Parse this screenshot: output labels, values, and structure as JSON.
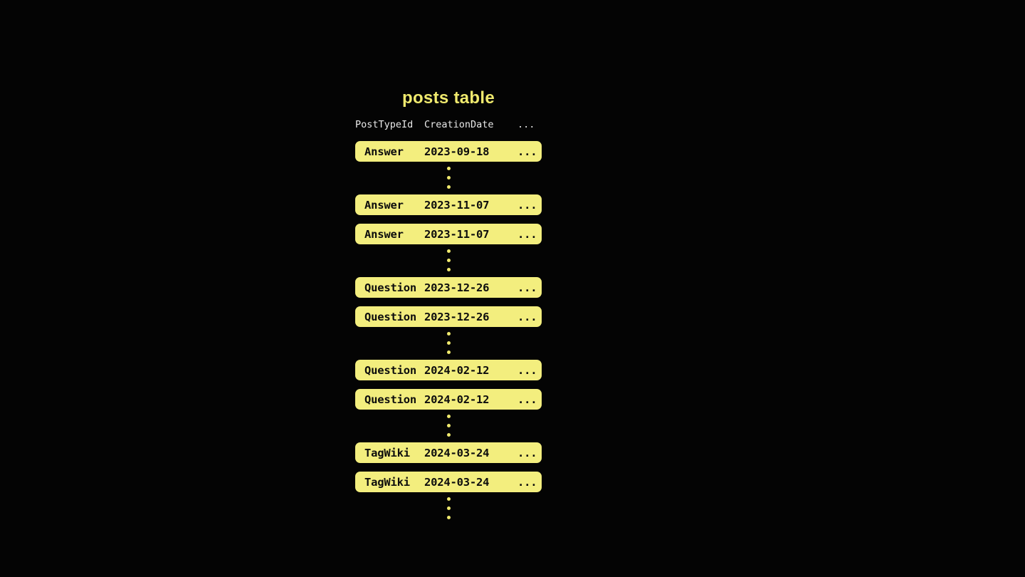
{
  "title": "posts table",
  "colors": {
    "bg": "#040404",
    "accent": "#f0ea6e",
    "row_bg": "#f3ee7e",
    "row_text": "#0d0d0d",
    "header_text": "#e9e9e9"
  },
  "table": {
    "columns": {
      "post_type_id": "PostTypeId",
      "creation_date": "CreationDate",
      "more": "..."
    },
    "row_more": "...",
    "rows": [
      {
        "type": "Answer",
        "date": "2023-09-18"
      },
      {
        "type": "Answer",
        "date": "2023-11-07"
      },
      {
        "type": "Answer",
        "date": "2023-11-07"
      },
      {
        "type": "Question",
        "date": "2023-12-26"
      },
      {
        "type": "Question",
        "date": "2023-12-26"
      },
      {
        "type": "Question",
        "date": "2024-02-12"
      },
      {
        "type": "Question",
        "date": "2024-02-12"
      },
      {
        "type": "TagWiki",
        "date": "2024-03-24"
      },
      {
        "type": "TagWiki",
        "date": "2024-03-24"
      }
    ]
  }
}
